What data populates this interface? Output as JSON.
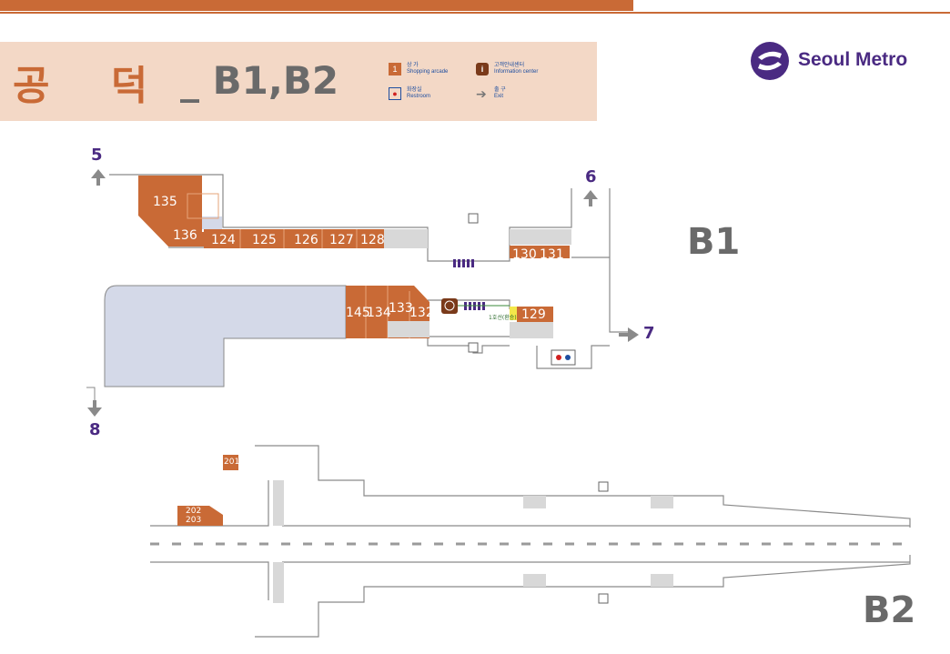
{
  "header": {
    "station_name": "공 덕",
    "floor_title": "_ B1,B2",
    "legend": [
      {
        "icon": "shopping-arcade-icon",
        "symbol": "1",
        "label_ko": "상 가",
        "label_en": "Shopping arcade"
      },
      {
        "icon": "information-center-icon",
        "symbol": "i",
        "label_ko": "고객안내센터",
        "label_en": "Information center"
      },
      {
        "icon": "restroom-icon",
        "symbol": "",
        "label_ko": "화장실",
        "label_en": "Restroom"
      },
      {
        "icon": "exit-arrow-icon",
        "symbol": "",
        "label_ko": "출 구",
        "label_en": "Exit"
      }
    ]
  },
  "logo": {
    "text": "Seoul Metro",
    "icon": "seoul-metro-logo-icon"
  },
  "colors": {
    "brand": "#c96a36",
    "header_bg": "#f3d8c6",
    "metro_purple": "#4a2a82",
    "concourse": "#d4d9e8",
    "title_gray": "#6a6a6a"
  },
  "exits": {
    "e5": "5",
    "e6": "6",
    "e7": "7",
    "e8": "8"
  },
  "floors": {
    "b1": "B1",
    "b2": "B2"
  },
  "shops": {
    "s135": "135",
    "s136": "136",
    "s124": "124",
    "s125": "125",
    "s126": "126",
    "s127": "127",
    "s128": "128",
    "s130": "130",
    "s131": "131",
    "s145": "145",
    "s134": "134",
    "s133": "133",
    "s132": "132",
    "s129": "129",
    "s201": "201",
    "s202": "202",
    "s203": "203"
  },
  "misc": {
    "small_label": "1호선(환승)"
  }
}
